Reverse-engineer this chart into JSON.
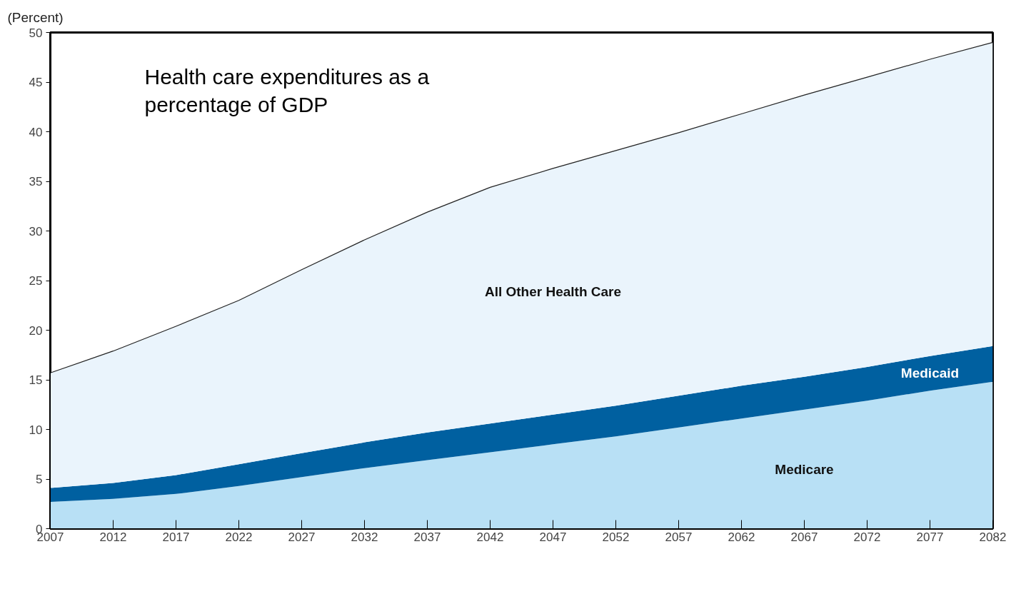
{
  "chart_data": {
    "type": "area",
    "title": "Health care expenditures as a percentage of GDP",
    "ylabel": "(Percent)",
    "x": [
      2007,
      2012,
      2017,
      2022,
      2027,
      2032,
      2037,
      2042,
      2047,
      2052,
      2057,
      2062,
      2067,
      2072,
      2077,
      2082
    ],
    "stacked": true,
    "series": [
      {
        "name": "Medicare",
        "color": "#b8e0f5",
        "values": [
          2.7,
          3.0,
          3.5,
          4.3,
          5.2,
          6.1,
          6.9,
          7.7,
          8.5,
          9.3,
          10.2,
          11.1,
          12.0,
          12.9,
          13.9,
          14.8
        ]
      },
      {
        "name": "Medicaid",
        "color": "#0060a0",
        "values": [
          1.4,
          1.6,
          1.9,
          2.2,
          2.4,
          2.6,
          2.8,
          2.9,
          3.0,
          3.1,
          3.2,
          3.3,
          3.3,
          3.4,
          3.5,
          3.6
        ]
      },
      {
        "name": "All Other Health Care",
        "color": "#eaf4fc",
        "values": [
          11.6,
          13.3,
          15.0,
          16.5,
          18.5,
          20.4,
          22.2,
          23.8,
          24.8,
          25.7,
          26.5,
          27.4,
          28.4,
          29.2,
          29.9,
          30.6
        ]
      }
    ],
    "xlim": [
      2007,
      2082
    ],
    "xticks": [
      2007,
      2012,
      2017,
      2022,
      2027,
      2032,
      2037,
      2042,
      2047,
      2052,
      2057,
      2062,
      2067,
      2072,
      2077,
      2082
    ],
    "ylim": [
      0,
      50
    ],
    "yticks": [
      0,
      5,
      10,
      15,
      20,
      25,
      30,
      35,
      40,
      45,
      50
    ],
    "grid": false
  }
}
